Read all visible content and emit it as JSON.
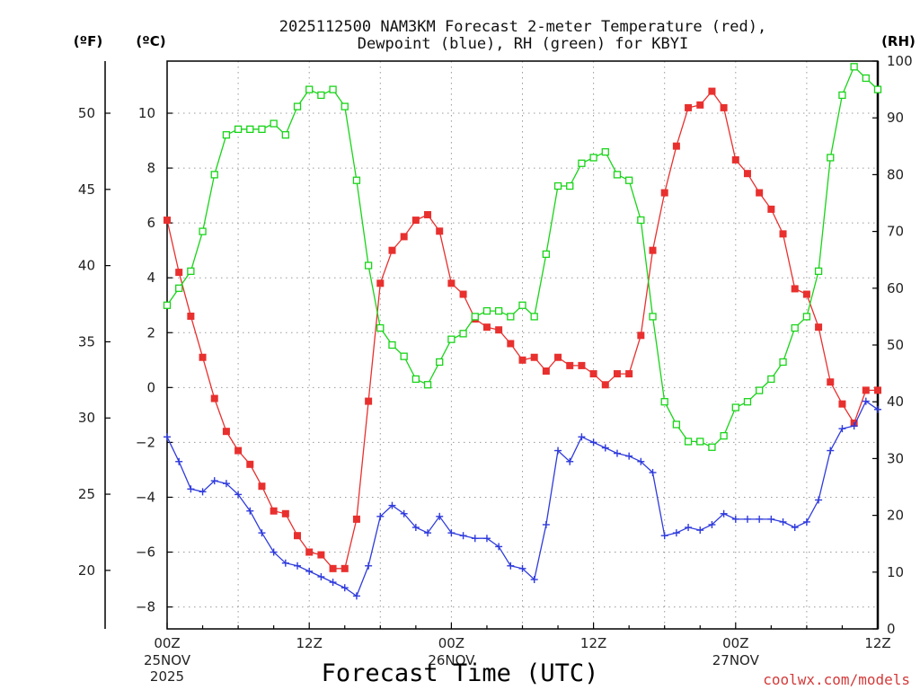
{
  "chart_data": {
    "type": "line",
    "title_line1": "2025112500 NAM3KM Forecast 2-meter Temperature (red),",
    "title_line2": "Dewpoint (blue), RH (green) for KBYI",
    "xlabel": "Forecast Time (UTC)",
    "credit": "coolwx.com/models",
    "unit_labels": {
      "fahrenheit": "(ºF)",
      "celsius": "(ºC)",
      "rh": "(RH)"
    },
    "x_range_hours": [
      0,
      60
    ],
    "x_ticks": [
      {
        "hour": 0,
        "line1": "00Z",
        "line2": "25NOV",
        "line3": "2025"
      },
      {
        "hour": 12,
        "line1": "12Z",
        "line2": "",
        "line3": ""
      },
      {
        "hour": 24,
        "line1": "00Z",
        "line2": "26NOV",
        "line3": ""
      },
      {
        "hour": 36,
        "line1": "12Z",
        "line2": "",
        "line3": ""
      },
      {
        "hour": 48,
        "line1": "00Z",
        "line2": "27NOV",
        "line3": ""
      },
      {
        "hour": 60,
        "line1": "12Z",
        "line2": "",
        "line3": ""
      }
    ],
    "celsius_axis": {
      "range": [
        -8.8,
        11.9
      ],
      "ticks": [
        -8,
        -6,
        -4,
        -2,
        0,
        2,
        4,
        6,
        8,
        10
      ]
    },
    "fahrenheit_axis": {
      "ticks": [
        20,
        25,
        30,
        35,
        40,
        45,
        50
      ]
    },
    "rh_axis": {
      "range": [
        0,
        100
      ],
      "ticks": [
        0,
        10,
        20,
        30,
        40,
        50,
        60,
        70,
        80,
        90,
        100
      ]
    },
    "series": [
      {
        "name": "Temperature",
        "unit": "°C",
        "color": "#e8302e",
        "marker": "filled-square",
        "x_step_hours": 1,
        "values": [
          6.1,
          4.2,
          2.6,
          1.1,
          -0.4,
          -1.6,
          -2.3,
          -2.8,
          -3.6,
          -4.5,
          -4.6,
          -5.4,
          -6.0,
          -6.1,
          -6.6,
          -6.6,
          -4.8,
          -0.5,
          3.8,
          5.0,
          5.5,
          6.1,
          6.3,
          5.7,
          3.8,
          3.4,
          2.5,
          2.2,
          2.1,
          1.6,
          1.0,
          1.1,
          0.6,
          1.1,
          0.8,
          0.8,
          0.5,
          0.1,
          0.5,
          0.5,
          1.9,
          5.0,
          7.1,
          8.8,
          10.2,
          10.3,
          10.8,
          10.2,
          8.3,
          7.8,
          7.1,
          6.5,
          5.6,
          3.6,
          3.4,
          2.2,
          0.2,
          -0.6,
          -1.3,
          -0.1,
          -0.1
        ]
      },
      {
        "name": "Dewpoint",
        "unit": "°C",
        "color": "#2f3bdc",
        "marker": "plus",
        "x_step_hours": 1,
        "values": [
          -1.8,
          -2.7,
          -3.7,
          -3.8,
          -3.4,
          -3.5,
          -3.9,
          -4.5,
          -5.3,
          -6.0,
          -6.4,
          -6.5,
          -6.7,
          -6.9,
          -7.1,
          -7.3,
          -7.6,
          -6.5,
          -4.7,
          -4.3,
          -4.6,
          -5.1,
          -5.3,
          -4.7,
          -5.3,
          -5.4,
          -5.5,
          -5.5,
          -5.8,
          -6.5,
          -6.6,
          -7.0,
          -5.0,
          -2.3,
          -2.7,
          -1.8,
          -2.0,
          -2.2,
          -2.4,
          -2.5,
          -2.7,
          -3.1,
          -5.4,
          -5.3,
          -5.1,
          -5.2,
          -5.0,
          -4.6,
          -4.8,
          -4.8,
          -4.8,
          -4.8,
          -4.9,
          -5.1,
          -4.9,
          -4.1,
          -2.3,
          -1.5,
          -1.4,
          -0.5,
          -0.8
        ]
      },
      {
        "name": "Relative Humidity",
        "unit": "%",
        "color": "#18d418",
        "marker": "open-square",
        "x_step_hours": 1,
        "values": [
          57,
          60,
          63,
          70,
          80,
          87,
          88,
          88,
          88,
          89,
          87,
          92,
          95,
          94,
          95,
          92,
          79,
          64,
          53,
          50,
          48,
          44,
          43,
          47,
          51,
          52,
          55,
          56,
          56,
          55,
          57,
          55,
          66,
          78,
          78,
          82,
          83,
          84,
          80,
          79,
          72,
          55,
          40,
          36,
          33,
          33,
          32,
          34,
          39,
          40,
          42,
          44,
          47,
          53,
          55,
          63,
          83,
          94,
          99,
          97,
          95
        ]
      }
    ]
  }
}
